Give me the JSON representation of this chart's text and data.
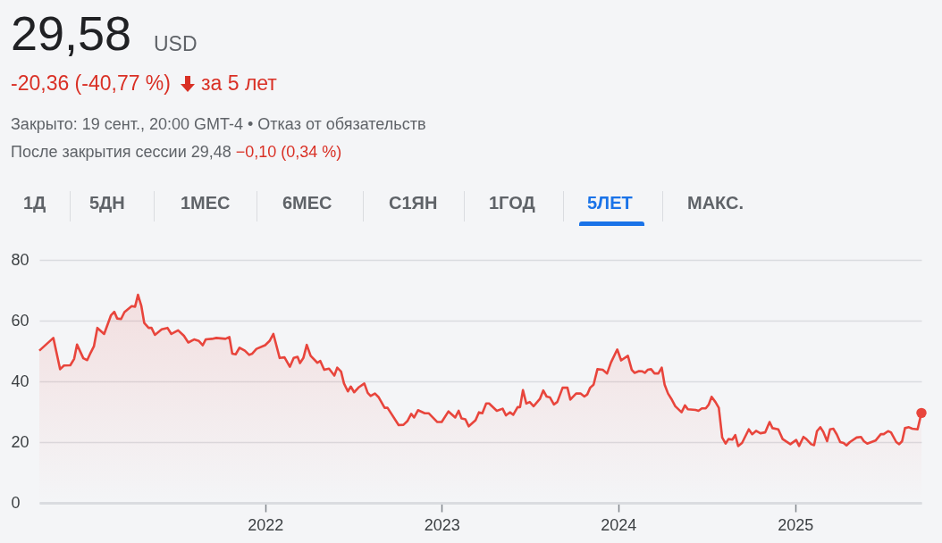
{
  "chart_data": {
    "type": "area",
    "title": "29,58",
    "annotations": [
      "USD",
      "-20,36 (-40,77 %)",
      "за 5 лет",
      "Закрыто: 19 сент., 20:00 GMT-4 • Отказ от обязательств",
      "После закрытия сессии 29,48",
      "−0,10 (0,34 %)",
      "1Д",
      "5ДН",
      "1МЕС",
      "6МЕС",
      "С1ЯН",
      "1ГОД",
      "5ЛЕТ",
      "МАКС."
    ],
    "xlim": [
      "2020-09-21",
      "2025-09-19"
    ],
    "xticks": [
      "2022",
      "2023",
      "2024",
      "2025"
    ],
    "ylim": [
      0,
      80
    ],
    "yticks": [
      0,
      20,
      40,
      60,
      80
    ],
    "grid": "y",
    "series": [
      {
        "color": "#e8453c",
        "x": [
          "2020-09-21",
          "2020-10-20",
          "2020-11-03",
          "2020-11-11",
          "2020-11-24",
          "2020-12-02",
          "2020-12-08",
          "2020-12-21",
          "2020-12-29",
          "2021-01-05",
          "2021-01-12",
          "2021-01-19",
          "2021-02-02",
          "2021-02-16",
          "2021-02-23",
          "2021-03-01",
          "2021-03-09",
          "2021-03-16",
          "2021-03-31",
          "2021-04-07",
          "2021-04-13",
          "2021-04-20",
          "2021-04-26",
          "2021-05-05",
          "2021-05-11",
          "2021-05-18",
          "2021-06-01",
          "2021-06-13",
          "2021-06-21",
          "2021-07-05",
          "2021-07-17",
          "2021-07-26",
          "2021-08-07",
          "2021-08-17",
          "2021-08-25",
          "2021-08-31",
          "2021-09-13",
          "2021-09-22",
          "2021-10-11",
          "2021-10-19",
          "2021-10-25",
          "2021-11-01",
          "2021-11-09",
          "2021-11-20",
          "2021-11-29",
          "2021-12-05",
          "2021-12-14",
          "2022-01-01",
          "2022-01-10",
          "2022-01-18",
          "2022-01-31",
          "2022-02-10",
          "2022-02-21",
          "2022-03-01",
          "2022-03-09",
          "2022-03-14",
          "2022-03-21",
          "2022-03-28",
          "2022-04-05",
          "2022-04-19",
          "2022-04-25",
          "2022-05-03",
          "2022-05-13",
          "2022-05-24",
          "2022-05-30",
          "2022-06-07",
          "2022-06-13",
          "2022-06-21",
          "2022-06-27",
          "2022-07-04",
          "2022-07-14",
          "2022-07-25",
          "2022-08-01",
          "2022-08-07",
          "2022-08-16",
          "2022-08-24",
          "2022-09-05",
          "2022-09-11",
          "2022-10-04",
          "2022-10-14",
          "2022-10-22",
          "2022-10-30",
          "2022-11-05",
          "2022-11-13",
          "2022-11-27",
          "2022-12-05",
          "2022-12-23",
          "2023-01-01",
          "2023-01-15",
          "2023-01-29",
          "2023-02-05",
          "2023-02-11",
          "2023-02-19",
          "2023-02-26",
          "2023-03-12",
          "2023-03-19",
          "2023-03-26",
          "2023-04-03",
          "2023-04-09",
          "2023-04-25",
          "2023-05-07",
          "2023-05-14",
          "2023-05-22",
          "2023-05-29",
          "2023-06-07",
          "2023-06-12",
          "2023-06-18",
          "2023-06-25",
          "2023-07-02",
          "2023-07-10",
          "2023-07-23",
          "2023-07-30",
          "2023-08-06",
          "2023-08-13",
          "2023-08-21",
          "2023-08-28",
          "2023-09-08",
          "2023-09-18",
          "2023-09-24",
          "2023-10-06",
          "2023-10-15",
          "2023-10-23",
          "2023-10-29",
          "2023-11-04",
          "2023-11-11",
          "2023-11-19",
          "2023-11-30",
          "2023-12-09",
          "2023-12-17",
          "2023-12-30",
          "2024-01-07",
          "2024-01-21",
          "2024-01-29",
          "2024-02-04",
          "2024-02-13",
          "2024-02-20",
          "2024-02-25",
          "2024-03-02",
          "2024-03-09",
          "2024-03-16",
          "2024-03-24",
          "2024-03-31",
          "2024-04-06",
          "2024-04-13",
          "2024-04-20",
          "2024-04-28",
          "2024-05-11",
          "2024-05-18",
          "2024-05-24",
          "2024-06-09",
          "2024-06-15",
          "2024-06-22",
          "2024-06-30",
          "2024-07-06",
          "2024-07-12",
          "2024-07-20",
          "2024-07-27",
          "2024-08-03",
          "2024-08-10",
          "2024-08-16",
          "2024-08-24",
          "2024-08-30",
          "2024-09-05",
          "2024-09-13",
          "2024-09-27",
          "2024-10-04",
          "2024-10-12",
          "2024-10-21",
          "2024-10-31",
          "2024-11-09",
          "2024-11-15",
          "2024-11-27",
          "2024-12-06",
          "2024-12-22",
          "2025-01-03",
          "2025-01-09",
          "2025-01-18",
          "2025-01-24",
          "2025-02-03",
          "2025-02-09",
          "2025-02-15",
          "2025-02-22",
          "2025-02-28",
          "2025-03-08",
          "2025-03-14",
          "2025-03-21",
          "2025-03-28",
          "2025-04-04",
          "2025-04-11",
          "2025-04-17",
          "2025-04-24",
          "2025-05-08",
          "2025-05-17",
          "2025-05-23",
          "2025-05-30",
          "2025-06-11",
          "2025-06-16",
          "2025-06-27",
          "2025-07-03",
          "2025-07-12",
          "2025-07-18",
          "2025-07-29",
          "2025-08-04",
          "2025-08-10",
          "2025-08-16",
          "2025-08-24",
          "2025-08-31",
          "2025-09-11",
          "2025-09-19"
        ],
        "values": [
          50.1,
          54.3,
          44.0,
          45.2,
          45.3,
          47.4,
          52.1,
          47.6,
          47.0,
          49.4,
          51.6,
          57.6,
          55.6,
          61.7,
          62.9,
          60.7,
          60.5,
          62.8,
          64.8,
          64.6,
          68.5,
          64.8,
          59.2,
          57.6,
          57.6,
          55.3,
          57.1,
          57.6,
          55.6,
          56.8,
          55.0,
          52.8,
          53.8,
          53.3,
          51.9,
          53.8,
          54.0,
          54.3,
          54.0,
          54.6,
          49.1,
          48.9,
          51.1,
          50.1,
          48.7,
          49.1,
          50.7,
          51.9,
          53.3,
          55.6,
          47.7,
          47.9,
          44.8,
          47.7,
          48.1,
          46.0,
          47.7,
          52.0,
          48.4,
          46.1,
          46.7,
          43.8,
          44.2,
          41.9,
          44.5,
          43.2,
          39.3,
          36.7,
          38.3,
          36.4,
          38.1,
          39.3,
          36.2,
          35.2,
          36.0,
          34.7,
          31.3,
          31.3,
          25.6,
          25.7,
          26.9,
          29.3,
          28.1,
          30.5,
          29.5,
          29.5,
          26.6,
          26.6,
          30.1,
          28.1,
          30.3,
          27.8,
          27.5,
          25.2,
          27.2,
          29.8,
          29.5,
          32.7,
          32.7,
          30.3,
          31.0,
          28.8,
          29.8,
          29.0,
          31.5,
          31.5,
          37.1,
          32.7,
          33.2,
          31.8,
          34.2,
          37.0,
          35.0,
          34.7,
          32.4,
          33.2,
          37.9,
          37.9,
          34.0,
          36.0,
          36.0,
          35.0,
          35.7,
          37.9,
          38.9,
          44.0,
          43.8,
          42.6,
          46.2,
          50.5,
          46.9,
          48.4,
          43.8,
          42.8,
          43.4,
          43.3,
          42.8,
          43.8,
          44.0,
          42.6,
          42.6,
          44.5,
          38.9,
          36.0,
          34.2,
          31.8,
          29.8,
          32.1,
          30.8,
          30.6,
          30.3,
          31.1,
          31.1,
          32.3,
          34.9,
          33.2,
          31.3,
          21.5,
          19.5,
          21.0,
          20.8,
          22.3,
          18.7,
          19.7,
          24.2,
          22.6,
          23.7,
          22.9,
          23.2,
          26.6,
          24.6,
          24.2,
          21.0,
          19.3,
          20.7,
          18.7,
          21.7,
          21.0,
          19.3,
          19.0,
          23.6,
          24.9,
          23.4,
          20.3,
          24.2,
          24.4,
          22.5,
          20.0,
          19.7,
          18.9,
          20.0,
          21.5,
          21.7,
          20.3,
          19.5,
          20.2,
          20.5,
          22.6,
          22.6,
          23.6,
          23.2,
          20.0,
          19.3,
          20.3,
          24.6,
          24.9,
          24.4,
          24.2,
          29.6
        ]
      },
      {
        "type": "scatter",
        "color": "#e8453c",
        "x": [
          "2025-09-19"
        ],
        "values": [
          29.6
        ]
      }
    ]
  }
}
